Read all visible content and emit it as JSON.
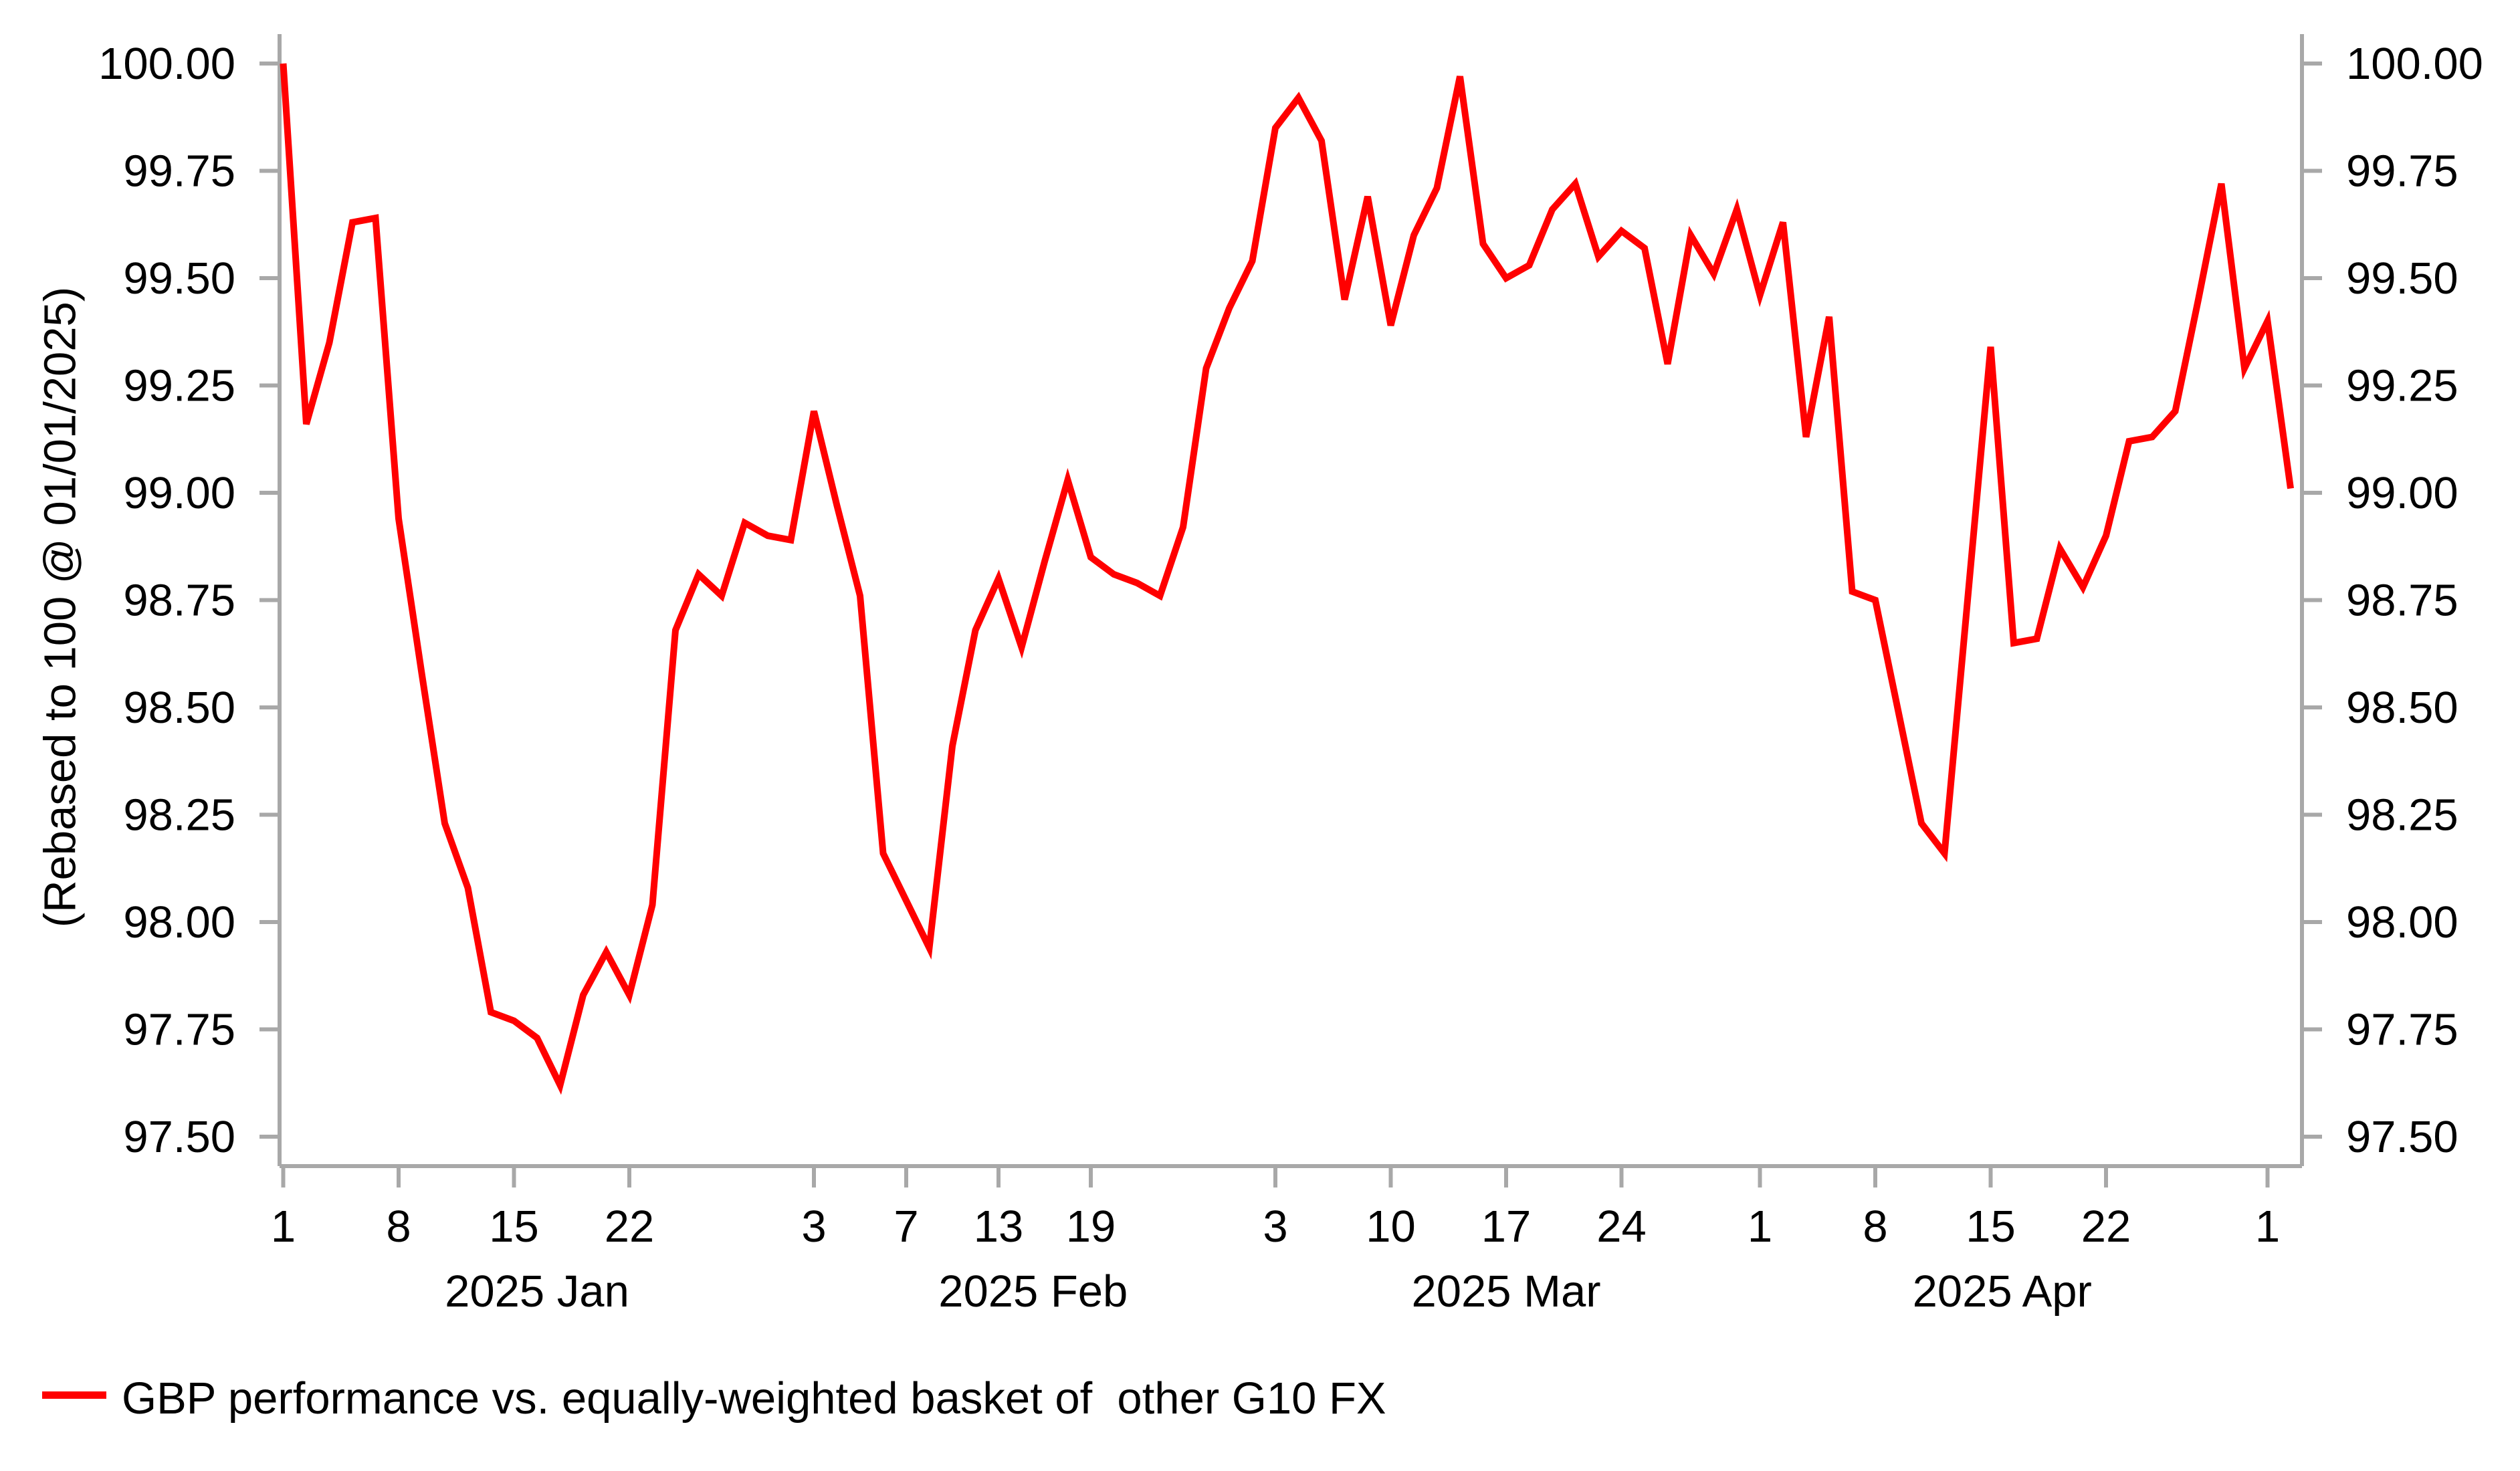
{
  "chart_data": {
    "type": "line",
    "title": "",
    "xlabel": "",
    "ylabel": "(Rebased to 100 @ 01/01/2025)",
    "grid": false,
    "legend_position": "bottom-left",
    "background_color": "#ffffff",
    "axis_color": "#a8a8a8",
    "text_color": "#000000",
    "ylim": [
      97.43,
      100.07
    ],
    "x_axis_type": "business-days",
    "x_range_dates": [
      "2025-01-01",
      "2025-05-02"
    ],
    "y_ticks": {
      "values": [
        100.0,
        99.75,
        99.5,
        99.25,
        99.0,
        98.75,
        98.5,
        98.25,
        98.0,
        97.75,
        97.5
      ],
      "labels": [
        "100.00",
        "99.75",
        "99.50",
        "99.25",
        "99.00",
        "98.75",
        "98.50",
        "98.25",
        "98.00",
        "97.75",
        "97.50"
      ],
      "sides": [
        "left",
        "right"
      ]
    },
    "x_ticks": [
      {
        "index": 0,
        "label": "1"
      },
      {
        "index": 5,
        "label": "8"
      },
      {
        "index": 10,
        "label": "15"
      },
      {
        "index": 15,
        "label": "22"
      },
      {
        "index": 23,
        "label": "3"
      },
      {
        "index": 27,
        "label": "7"
      },
      {
        "index": 31,
        "label": "13"
      },
      {
        "index": 35,
        "label": "19"
      },
      {
        "index": 43,
        "label": "3"
      },
      {
        "index": 48,
        "label": "10"
      },
      {
        "index": 53,
        "label": "17"
      },
      {
        "index": 58,
        "label": "24"
      },
      {
        "index": 64,
        "label": "1"
      },
      {
        "index": 69,
        "label": "8"
      },
      {
        "index": 74,
        "label": "15"
      },
      {
        "index": 79,
        "label": "22"
      },
      {
        "index": 86,
        "label": "1"
      }
    ],
    "month_labels": [
      {
        "label": "2025 Jan",
        "start_index": 0,
        "end_index": 22
      },
      {
        "label": "2025 Feb",
        "start_index": 23,
        "end_index": 42
      },
      {
        "label": "2025 Mar",
        "start_index": 43,
        "end_index": 63
      },
      {
        "label": "2025 Apr",
        "start_index": 64,
        "end_index": 85
      }
    ],
    "series": [
      {
        "name": "GBP performance vs. equally-weighted basket of  other G10 FX",
        "color": "#ff0000",
        "line_width": 10,
        "dates": [
          "2025-01-01",
          "2025-01-02",
          "2025-01-03",
          "2025-01-06",
          "2025-01-07",
          "2025-01-08",
          "2025-01-09",
          "2025-01-10",
          "2025-01-13",
          "2025-01-14",
          "2025-01-15",
          "2025-01-16",
          "2025-01-17",
          "2025-01-20",
          "2025-01-21",
          "2025-01-22",
          "2025-01-23",
          "2025-01-24",
          "2025-01-27",
          "2025-01-28",
          "2025-01-29",
          "2025-01-30",
          "2025-01-31",
          "2025-02-03",
          "2025-02-04",
          "2025-02-05",
          "2025-02-06",
          "2025-02-07",
          "2025-02-10",
          "2025-02-11",
          "2025-02-12",
          "2025-02-13",
          "2025-02-14",
          "2025-02-17",
          "2025-02-18",
          "2025-02-19",
          "2025-02-20",
          "2025-02-21",
          "2025-02-24",
          "2025-02-25",
          "2025-02-26",
          "2025-02-27",
          "2025-02-28",
          "2025-03-03",
          "2025-03-04",
          "2025-03-05",
          "2025-03-06",
          "2025-03-07",
          "2025-03-10",
          "2025-03-11",
          "2025-03-12",
          "2025-03-13",
          "2025-03-14",
          "2025-03-17",
          "2025-03-18",
          "2025-03-19",
          "2025-03-20",
          "2025-03-21",
          "2025-03-24",
          "2025-03-25",
          "2025-03-26",
          "2025-03-27",
          "2025-03-28",
          "2025-03-31",
          "2025-04-01",
          "2025-04-02",
          "2025-04-03",
          "2025-04-04",
          "2025-04-07",
          "2025-04-08",
          "2025-04-09",
          "2025-04-10",
          "2025-04-11",
          "2025-04-14",
          "2025-04-15",
          "2025-04-16",
          "2025-04-17",
          "2025-04-18",
          "2025-04-21",
          "2025-04-22",
          "2025-04-23",
          "2025-04-24",
          "2025-04-25",
          "2025-04-28",
          "2025-04-29",
          "2025-04-30",
          "2025-05-01",
          "2025-05-02"
        ],
        "values": [
          100.0,
          99.16,
          99.35,
          99.63,
          99.64,
          98.94,
          98.58,
          98.23,
          98.08,
          97.79,
          97.77,
          97.73,
          97.62,
          97.83,
          97.93,
          97.83,
          98.04,
          98.68,
          98.81,
          98.76,
          98.93,
          98.9,
          98.89,
          99.19,
          98.97,
          98.76,
          98.16,
          98.05,
          97.94,
          98.41,
          98.68,
          98.8,
          98.64,
          98.84,
          99.03,
          98.85,
          98.81,
          98.79,
          98.76,
          98.92,
          99.29,
          99.43,
          99.54,
          99.85,
          99.92,
          99.82,
          99.45,
          99.69,
          99.39,
          99.6,
          99.71,
          99.97,
          99.58,
          99.5,
          99.53,
          99.66,
          99.72,
          99.55,
          99.61,
          99.57,
          99.3,
          99.6,
          99.51,
          99.66,
          99.46,
          99.63,
          99.13,
          99.41,
          98.77,
          98.75,
          98.49,
          98.23,
          98.16,
          98.75,
          99.34,
          98.65,
          98.66,
          98.87,
          98.78,
          98.9,
          99.12,
          99.13,
          99.19,
          99.45,
          99.72,
          99.29,
          99.4,
          99.01
        ]
      }
    ]
  },
  "legend": {
    "label": "GBP performance vs. equally-weighted basket of  other G10 FX"
  }
}
